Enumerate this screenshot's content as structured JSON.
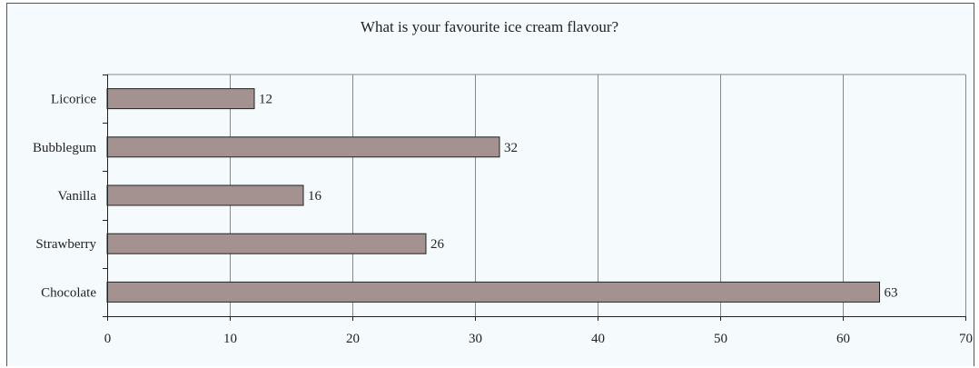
{
  "chart_data": {
    "type": "bar",
    "orientation": "horizontal",
    "title": "What is your favourite ice cream flavour?",
    "xlabel": "",
    "ylabel": "",
    "categories": [
      "Licorice",
      "Bubblegum",
      "Vanilla",
      "Strawberry",
      "Chocolate"
    ],
    "values": [
      12,
      32,
      16,
      26,
      63
    ],
    "xlim": [
      0,
      70
    ],
    "x_ticks": [
      0,
      10,
      20,
      30,
      40,
      50,
      60,
      70
    ],
    "grid": "vertical",
    "legend": "none",
    "data_labels": true,
    "colors": {
      "bar_fill": "#a39290",
      "bar_stroke": "#222222",
      "background": "#f5fbfd",
      "grid": "#888888"
    }
  }
}
